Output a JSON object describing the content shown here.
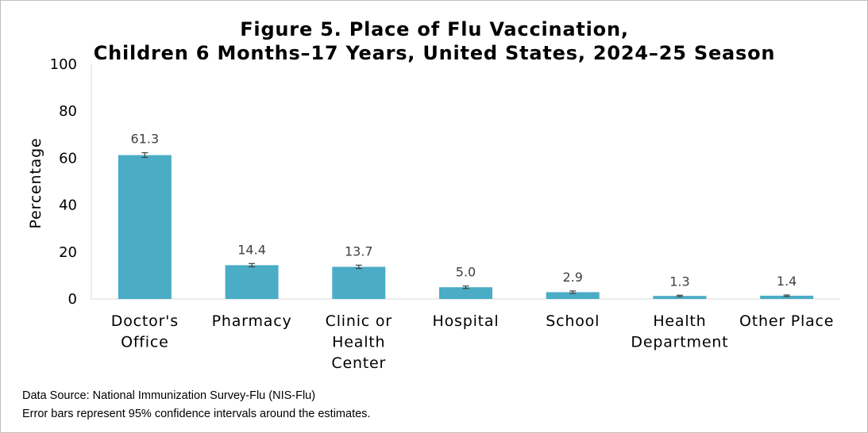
{
  "chart_data": {
    "type": "bar",
    "title": "Figure 5. Place of Flu Vaccination,",
    "subtitle": "Children 6 Months–17 Years, United States, 2024–25 Season",
    "ylabel": "Percentage",
    "xlabel": "",
    "ylim": [
      0,
      100
    ],
    "yticks": [
      "0",
      "20",
      "40",
      "60",
      "80",
      "100"
    ],
    "categories": [
      [
        "Doctor's",
        "Office"
      ],
      [
        "Pharmacy"
      ],
      [
        "Clinic or",
        "Health",
        "Center"
      ],
      [
        "Hospital"
      ],
      [
        "School"
      ],
      [
        "Health",
        "Department"
      ],
      [
        "Other Place"
      ]
    ],
    "values": [
      61.3,
      14.4,
      13.7,
      5.0,
      2.9,
      1.3,
      1.4
    ],
    "labels": [
      "61.3",
      "14.4",
      "13.7",
      "5.0",
      "2.9",
      "1.3",
      "1.4"
    ],
    "ci_halfwidth": [
      1.0,
      0.7,
      0.7,
      0.5,
      0.5,
      0.3,
      0.3
    ],
    "bar_color": "#4bacc6",
    "errorbar_color": "#404040",
    "grid": false,
    "legend": "none"
  },
  "footnotes": {
    "source": "Data Source: National Immunization Survey-Flu (NIS-Flu)",
    "note": "Error bars represent 95% confidence intervals around the estimates."
  }
}
